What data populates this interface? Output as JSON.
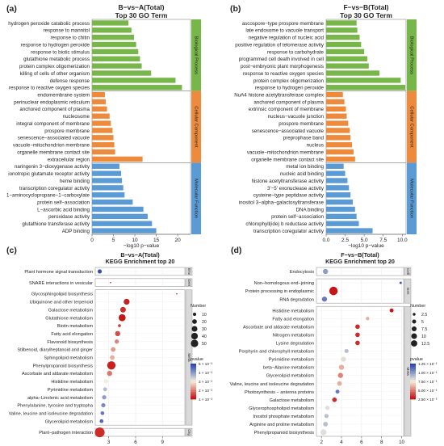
{
  "chart_data": [
    {
      "panel": "(a)",
      "type": "bar",
      "orientation": "horizontal",
      "title": "B−vs−A(Total)",
      "subtitle": "Top 30 GO Term",
      "xlabel": "−log10 p−value",
      "xlim": [
        0,
        23
      ],
      "xticks": [
        0,
        5,
        10,
        15,
        20
      ],
      "groups": [
        {
          "name": "Biological Process",
          "color": "#77b649",
          "categories": [
            "hydrogen peroxide catabolic process",
            "response to mannitol",
            "response to chitin",
            "response to hydrogen peroxide",
            "response to biotic stimulus",
            "glutathione metabolic process",
            "protein complex oligomerization",
            "killing of cells of other organism",
            "defense response",
            "response to reactive oxygen species"
          ],
          "values": [
            8.5,
            9.2,
            9.8,
            10.3,
            10.8,
            11.2,
            11.6,
            13.8,
            19.5,
            21.0
          ]
        },
        {
          "name": "Cellular Component",
          "color": "#ee8a3c",
          "categories": [
            "endomembrane system",
            "perinuclear endoplasmic reticulum",
            "anchored component of plasma",
            "nucleosome",
            "integral component of membrane",
            "prospore membrane",
            "senescence−associated vacuole",
            "vacuole−mitochondrion membrane",
            "organelle membrane contact site",
            "extracellular region"
          ],
          "values": [
            3.0,
            3.2,
            3.5,
            4.1,
            4.4,
            4.8,
            5.0,
            5.2,
            5.4,
            11.8
          ]
        },
        {
          "name": "Molecular Function",
          "color": "#5b9bd5",
          "categories": [
            "naringenin 3−dioxygenase activity",
            "ionotropic glutamate receptor activity",
            "heme binding",
            "transcription coregulator activity",
            "1−aminocyclopropane−1−carboxylate",
            "protein self−association",
            "L−ascorbic acid binding",
            "peroxidase activity",
            "glutathione transferase activity",
            "ADP binding"
          ],
          "values": [
            6.4,
            6.8,
            7.0,
            7.3,
            7.6,
            9.5,
            12.0,
            13.0,
            14.0,
            15.0
          ]
        }
      ]
    },
    {
      "panel": "(b)",
      "type": "bar",
      "orientation": "horizontal",
      "title": "F−vs−B(Total)",
      "subtitle": "Top 30 GO Term",
      "xlabel": "−log10 p−value",
      "xlim": [
        0,
        10.5
      ],
      "xticks": [
        0.0,
        2.5,
        5.0,
        7.5,
        10.0
      ],
      "groups": [
        {
          "name": "Biological Process",
          "color": "#77b649",
          "categories": [
            "ascospore−type prospore membrane",
            "late endosome to vacuole transport",
            "negative regulation of nucleic acid",
            "positive regulation of telomerase activity",
            "response to carbohydrate",
            "programmed cell death involved in cell",
            "post−embryonic plant morphogenesis",
            "response to reactive oxygen species",
            "protein complex oligomerization",
            "response to hydrogen peroxide"
          ],
          "values": [
            4.0,
            4.1,
            4.4,
            4.6,
            5.0,
            5.4,
            5.6,
            7.0,
            9.8,
            10.4
          ]
        },
        {
          "name": "Cellular Component",
          "color": "#ee8a3c",
          "categories": [
            "NuA4 histone acetyltransferase complex",
            "anchored component of plasma",
            "extrinsic component of membrane",
            "nucleus−vacuole junction",
            "prospore membrane",
            "senescence−associated vacuole",
            "preprophase band",
            "nucleus",
            "vacuole−mitochondrion membrane",
            "organelle membrane contact site"
          ],
          "values": [
            2.2,
            2.4,
            2.6,
            2.7,
            2.9,
            3.1,
            3.2,
            3.4,
            3.6,
            3.8
          ]
        },
        {
          "name": "Molecular Function",
          "color": "#5b9bd5",
          "categories": [
            "metal ion binding",
            "nucleic acid binding",
            "histone acetyltransferase activity",
            "3'−5' exonuclease activity",
            "cysteine−type peptidase activity",
            "inositol 3−alpha−galactosyltransferase",
            "DNA binding",
            "protein self−association",
            "chlorophyll(ide) b reductase activity",
            "transcription coregulator activity"
          ],
          "values": [
            2.3,
            2.5,
            2.8,
            3.0,
            3.2,
            3.5,
            3.8,
            4.0,
            4.3,
            6.1
          ]
        }
      ]
    },
    {
      "panel": "(c)",
      "type": "scatter",
      "title": "B−vs−A(Total)",
      "subtitle": "KEGG Enrichment top 20",
      "xlabel": "Enrichment Score",
      "xlim": [
        1.5,
        11.5
      ],
      "xticks": [
        3,
        6,
        9
      ],
      "size_legend_title": "Number",
      "size_legend": [
        10,
        20,
        30,
        40,
        50
      ],
      "color_legend_title": "pvalue",
      "color_legend": [
        "5 × 10⁻³",
        "4 × 10⁻³",
        "3 × 10⁻³",
        "2 × 10⁻³",
        "1 × 10⁻³"
      ],
      "facets": [
        {
          "name": "Env",
          "categories": [
            "Plant hormone signal transduction"
          ],
          "x": [
            2.0
          ],
          "number": [
            10
          ],
          "pvalue": [
            0.0049
          ]
        },
        {
          "name": "Gen",
          "categories": [
            "SNARE interactions in vesicular"
          ],
          "x": [
            3.2
          ],
          "number": [
            1
          ],
          "pvalue": [
            0.0012
          ]
        },
        {
          "name": "Meta",
          "categories": [
            "Glycosphingolipid biosynthesis",
            "Ubiquinone and other terpenoid",
            "Galactose metabolism",
            "Glutathione metabolism",
            "Biotin metabolism",
            "Fatty acid elongation",
            "Flavonoid biosynthesis",
            "Stilbenoid, diarylheptanoid and ginger",
            "Sphingolipid metabolism",
            "Phenylpropanoid biosynthesis",
            "Ascorbate and aldarate metabolism",
            "Histidine metabolism",
            "Pyrimidine metabolism",
            "alpha−Linolenic acid metabolism",
            "Phenylalanine, tyrosine and tryptopha",
            "Valine, leucine and isoleucine degradation",
            "Glycerolipid metabolism"
          ],
          "x": [
            10.6,
            5.0,
            4.6,
            4.5,
            4.2,
            4.0,
            3.9,
            3.5,
            3.4,
            3.3,
            3.1,
            2.7,
            2.6,
            2.5,
            2.4,
            2.3,
            2.2
          ],
          "number": [
            1,
            20,
            18,
            28,
            5,
            15,
            10,
            12,
            12,
            40,
            15,
            8,
            8,
            10,
            10,
            8,
            8
          ],
          "pvalue": [
            0.0012,
            0.0011,
            0.0012,
            0.001,
            0.0014,
            0.0015,
            0.002,
            0.0022,
            0.0024,
            0.0011,
            0.0019,
            0.003,
            0.0036,
            0.004,
            0.0042,
            0.0044,
            0.0046
          ]
        },
        {
          "name": "Org",
          "categories": [
            "Plant−pathogen interaction"
          ],
          "x": [
            2.0
          ],
          "number": [
            55
          ],
          "pvalue": [
            0.0012
          ]
        }
      ]
    },
    {
      "panel": "(d)",
      "type": "scatter",
      "title": "F−vs−B(Total)",
      "subtitle": "KEGG Enrichment top 20",
      "xlabel": "Enrichment Score",
      "xlim": [
        1.5,
        10.2
      ],
      "xticks": [
        2,
        4,
        6,
        8,
        10
      ],
      "size_legend_title": "Number",
      "size_legend": [
        2.5,
        5.0,
        7.5,
        10.0,
        12.5
      ],
      "color_legend_title": "pvalue",
      "color_legend": [
        "1.25 × 10⁻²",
        "1.00 × 10⁻²",
        "7.50 × 10⁻³",
        "5.00 × 10⁻³",
        "2.50 × 10⁻³"
      ],
      "facets": [
        {
          "name": "Cell",
          "categories": [
            "Endocytosis"
          ],
          "x": [
            2.4
          ],
          "number": [
            5
          ],
          "pvalue": [
            0.01
          ]
        },
        {
          "name": "Gen",
          "categories": [
            "Non−homologous end−joining",
            "Protein processing in endoplasmic",
            "RNA degradation"
          ],
          "x": [
            9.9,
            3.2,
            2.3
          ],
          "number": [
            1,
            14,
            5
          ],
          "pvalue": [
            0.012,
            0.0025,
            0.011
          ]
        },
        {
          "name": "Meta",
          "categories": [
            "Histidine metabolism",
            "Fatty acid elongation",
            "Ascorbate and aldarate metabolism",
            "Nitrogen metabolism",
            "Lysine degradation",
            "Porphyrin and chlorophyll metabolism",
            "Pyrimidine metabolism",
            "beta−Alanine metabolism",
            "Glycerolipid metabolism",
            "Valine, leucine and isoleucine degradation",
            "Photosynthesis − antenna proteins",
            "Galactose metabolism",
            "Glycerophospholipid metabolism",
            "Inositol phosphate metabolism",
            "Arginine and proline metabolism",
            "Phenylpropanoid biosynthesis"
          ],
          "x": [
            9.0,
            6.6,
            5.6,
            5.6,
            5.6,
            4.5,
            4.2,
            4.0,
            3.9,
            3.8,
            3.6,
            3.3,
            2.6,
            2.5,
            2.4,
            2.2
          ],
          "number": [
            3,
            2,
            4,
            4,
            4,
            3,
            4,
            5,
            5,
            4,
            3,
            4,
            3,
            3,
            4,
            6
          ],
          "pvalue": [
            0.0025,
            0.006,
            0.003,
            0.003,
            0.003,
            0.009,
            0.008,
            0.006,
            0.005,
            0.006,
            0.011,
            0.003,
            0.008,
            0.009,
            0.009,
            0.008
          ]
        }
      ]
    }
  ]
}
